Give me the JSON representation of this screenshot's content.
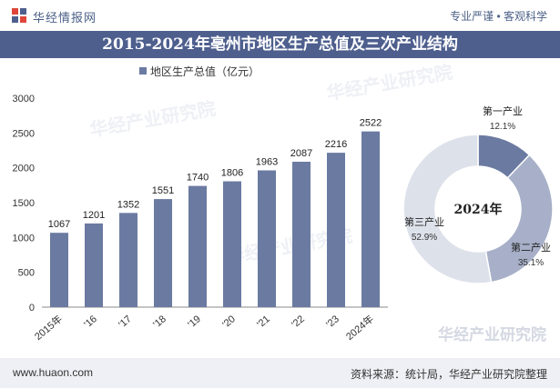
{
  "header": {
    "brand": "华经情报网",
    "slogan": "专业严谨 • 客观科学"
  },
  "title": "2015-2024年亳州市地区生产总值及三次产业结构",
  "footer": {
    "site": "www.huaon.com",
    "source": "资料来源：统计局，华经产业研究院整理"
  },
  "watermark": "华经产业研究院",
  "colors": {
    "bar": "#6b7aa1",
    "primary": "#6b7aa1",
    "secondary": "#a7b0c8",
    "tertiary": "#dde1ea",
    "title_bg": "#4e5f8e"
  },
  "chart_data": [
    {
      "type": "bar",
      "legend": "地区生产总值（亿元）",
      "categories": [
        "2015年",
        "'16",
        "'17",
        "'18",
        "'19",
        "'20",
        "'21",
        "'22",
        "'23",
        "2024年"
      ],
      "values": [
        1067,
        1201,
        1352,
        1551,
        1740,
        1806,
        1963,
        2087,
        2216,
        2522
      ],
      "yticks": [
        0,
        500,
        1000,
        1500,
        2000,
        2500,
        3000
      ],
      "ylim": [
        0,
        3000
      ]
    },
    {
      "type": "pie",
      "center_label": "2024年",
      "slices": [
        {
          "name": "第一产业",
          "value": 12.1,
          "label": "12.1%"
        },
        {
          "name": "第二产业",
          "value": 35.1,
          "label": "35.1%"
        },
        {
          "name": "第三产业",
          "value": 52.9,
          "label": "52.9%"
        }
      ]
    }
  ]
}
